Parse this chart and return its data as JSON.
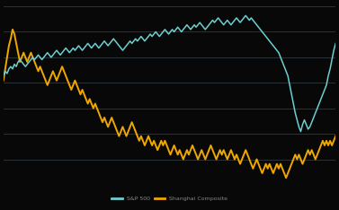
{
  "background_color": "#080808",
  "grid_color": "#303840",
  "sp500_color": "#6dcfcf",
  "shanghai_color": "#f0a800",
  "ylim": [
    -0.45,
    0.32
  ],
  "n_gridlines": 8,
  "legend_labels": [
    "S&P 500",
    "Shanghai Composite"
  ],
  "sp500_data": [
    0.02,
    0.04,
    0.03,
    0.05,
    0.06,
    0.05,
    0.07,
    0.06,
    0.08,
    0.09,
    0.08,
    0.07,
    0.06,
    0.07,
    0.08,
    0.09,
    0.1,
    0.09,
    0.1,
    0.11,
    0.1,
    0.09,
    0.1,
    0.11,
    0.12,
    0.11,
    0.1,
    0.11,
    0.12,
    0.13,
    0.12,
    0.11,
    0.12,
    0.13,
    0.14,
    0.13,
    0.12,
    0.13,
    0.14,
    0.13,
    0.14,
    0.15,
    0.14,
    0.13,
    0.14,
    0.15,
    0.16,
    0.15,
    0.14,
    0.15,
    0.16,
    0.15,
    0.14,
    0.15,
    0.16,
    0.17,
    0.16,
    0.15,
    0.16,
    0.17,
    0.18,
    0.17,
    0.16,
    0.15,
    0.14,
    0.13,
    0.14,
    0.15,
    0.16,
    0.17,
    0.16,
    0.17,
    0.18,
    0.17,
    0.18,
    0.19,
    0.18,
    0.17,
    0.18,
    0.19,
    0.2,
    0.19,
    0.2,
    0.21,
    0.2,
    0.19,
    0.2,
    0.21,
    0.22,
    0.21,
    0.2,
    0.21,
    0.22,
    0.21,
    0.22,
    0.23,
    0.22,
    0.21,
    0.22,
    0.23,
    0.24,
    0.23,
    0.22,
    0.23,
    0.24,
    0.23,
    0.24,
    0.25,
    0.24,
    0.23,
    0.22,
    0.23,
    0.24,
    0.25,
    0.26,
    0.25,
    0.26,
    0.27,
    0.26,
    0.25,
    0.24,
    0.25,
    0.26,
    0.25,
    0.24,
    0.25,
    0.26,
    0.27,
    0.26,
    0.25,
    0.26,
    0.27,
    0.28,
    0.27,
    0.26,
    0.27,
    0.26,
    0.25,
    0.24,
    0.23,
    0.22,
    0.21,
    0.2,
    0.19,
    0.18,
    0.17,
    0.16,
    0.15,
    0.14,
    0.13,
    0.12,
    0.1,
    0.08,
    0.06,
    0.04,
    0.02,
    -0.02,
    -0.06,
    -0.1,
    -0.14,
    -0.17,
    -0.2,
    -0.22,
    -0.19,
    -0.17,
    -0.19,
    -0.21,
    -0.2,
    -0.18,
    -0.16,
    -0.14,
    -0.12,
    -0.1,
    -0.08,
    -0.06,
    -0.04,
    -0.02,
    0.02,
    0.05,
    0.09,
    0.13,
    0.16
  ],
  "shanghai_data": [
    0.0,
    0.05,
    0.1,
    0.15,
    0.18,
    0.22,
    0.2,
    0.16,
    0.12,
    0.08,
    0.1,
    0.12,
    0.1,
    0.08,
    0.1,
    0.12,
    0.1,
    0.08,
    0.06,
    0.04,
    0.06,
    0.04,
    0.02,
    0.0,
    -0.02,
    0.0,
    0.02,
    0.04,
    0.02,
    0.0,
    0.02,
    0.04,
    0.06,
    0.04,
    0.02,
    0.0,
    -0.02,
    -0.04,
    -0.02,
    0.0,
    -0.02,
    -0.04,
    -0.06,
    -0.04,
    -0.06,
    -0.08,
    -0.1,
    -0.08,
    -0.1,
    -0.12,
    -0.1,
    -0.12,
    -0.14,
    -0.16,
    -0.18,
    -0.16,
    -0.18,
    -0.2,
    -0.18,
    -0.16,
    -0.18,
    -0.2,
    -0.22,
    -0.24,
    -0.22,
    -0.2,
    -0.22,
    -0.24,
    -0.22,
    -0.2,
    -0.18,
    -0.2,
    -0.22,
    -0.24,
    -0.26,
    -0.24,
    -0.26,
    -0.28,
    -0.26,
    -0.24,
    -0.26,
    -0.28,
    -0.26,
    -0.28,
    -0.3,
    -0.28,
    -0.26,
    -0.28,
    -0.26,
    -0.28,
    -0.3,
    -0.32,
    -0.3,
    -0.28,
    -0.3,
    -0.32,
    -0.3,
    -0.32,
    -0.34,
    -0.32,
    -0.3,
    -0.32,
    -0.3,
    -0.28,
    -0.3,
    -0.32,
    -0.34,
    -0.32,
    -0.3,
    -0.32,
    -0.34,
    -0.32,
    -0.3,
    -0.28,
    -0.3,
    -0.32,
    -0.34,
    -0.32,
    -0.3,
    -0.32,
    -0.3,
    -0.32,
    -0.34,
    -0.32,
    -0.3,
    -0.32,
    -0.34,
    -0.32,
    -0.34,
    -0.36,
    -0.34,
    -0.32,
    -0.3,
    -0.32,
    -0.34,
    -0.36,
    -0.38,
    -0.36,
    -0.34,
    -0.36,
    -0.38,
    -0.4,
    -0.38,
    -0.36,
    -0.38,
    -0.36,
    -0.38,
    -0.4,
    -0.38,
    -0.36,
    -0.38,
    -0.36,
    -0.38,
    -0.4,
    -0.42,
    -0.4,
    -0.38,
    -0.36,
    -0.34,
    -0.32,
    -0.34,
    -0.32,
    -0.34,
    -0.36,
    -0.34,
    -0.32,
    -0.3,
    -0.32,
    -0.3,
    -0.32,
    -0.34,
    -0.32,
    -0.3,
    -0.28,
    -0.26,
    -0.28,
    -0.26,
    -0.28,
    -0.26,
    -0.28,
    -0.26,
    -0.24
  ]
}
